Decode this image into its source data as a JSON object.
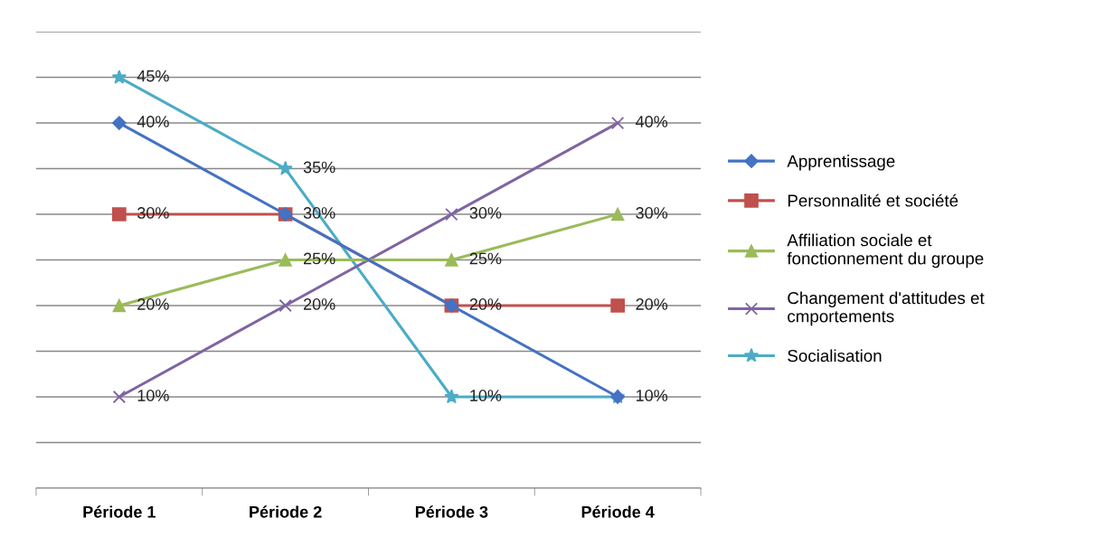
{
  "chart_data": {
    "type": "line",
    "categories": [
      "Période 1",
      "Période 2",
      "Période 3",
      "Période 4"
    ],
    "ylim": [
      0,
      50
    ],
    "yticks": [
      {
        "value": 0,
        "label": null
      },
      {
        "value": 5,
        "label": null
      },
      {
        "value": 10,
        "label": null
      },
      {
        "value": 15,
        "label": null
      },
      {
        "value": 20,
        "label": null
      },
      {
        "value": 25,
        "label": null
      },
      {
        "value": 30,
        "label": null
      },
      {
        "value": 35,
        "label": null
      },
      {
        "value": 40,
        "label": null
      },
      {
        "value": 45,
        "label": null
      },
      {
        "value": 50,
        "label": null
      }
    ],
    "tick_labels": "x",
    "grid": "y",
    "legend": "right",
    "series": [
      {
        "name": "Apprentissage",
        "color": "#4472c4",
        "marker": "diamond",
        "values": [
          40,
          30,
          20,
          10
        ],
        "value_labels": [
          "40%",
          null,
          null,
          null
        ]
      },
      {
        "name": "Personnalité et société",
        "color": "#c0504d",
        "marker": "square",
        "values": [
          30,
          30,
          20,
          20
        ],
        "value_labels": [
          "30%",
          "30%",
          "20%",
          "20%"
        ]
      },
      {
        "name": "Affiliation sociale et\nfonctionnement du groupe",
        "color": "#9bbb59",
        "marker": "triangle",
        "values": [
          20,
          25,
          25,
          30
        ],
        "value_labels": [
          "20%",
          "25%",
          "25%",
          "30%"
        ]
      },
      {
        "name": "Changement d'attitudes et\ncmportements",
        "color": "#8064a2",
        "marker": "cross",
        "values": [
          10,
          20,
          30,
          40
        ],
        "value_labels": [
          "10%",
          "20%",
          "30%",
          "40%"
        ]
      },
      {
        "name": "Socialisation",
        "color": "#4bacc6",
        "marker": "star",
        "values": [
          45,
          35,
          10,
          10
        ],
        "value_labels": [
          "45%",
          "35%",
          "10%",
          "10%"
        ]
      }
    ]
  }
}
